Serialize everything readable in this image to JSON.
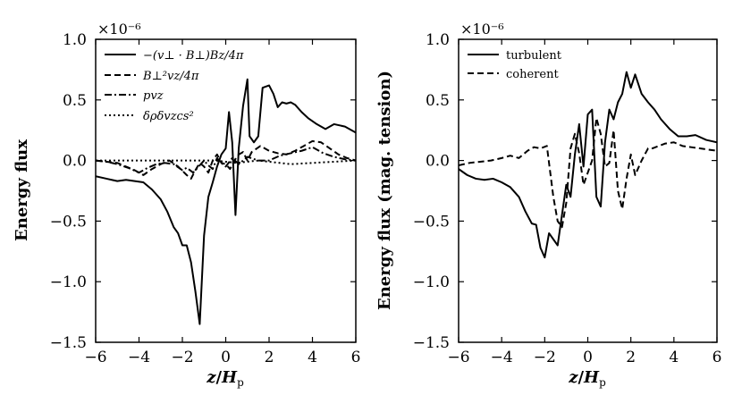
{
  "chart_data": [
    {
      "type": "line",
      "xlabel": "z/H_p",
      "xlabel_parts": [
        "z",
        "/",
        "H",
        "p"
      ],
      "ylabel": "Energy flux",
      "offset_label": "×10⁻⁶",
      "xlim": [
        -6,
        6
      ],
      "ylim": [
        -1.5,
        1.0
      ],
      "xticks": [
        -6,
        -4,
        -2,
        0,
        2,
        4,
        6
      ],
      "xtick_labels": [
        "−6",
        "−4",
        "−2",
        "0",
        "2",
        "4",
        "6"
      ],
      "yticks": [
        -1.5,
        -1.0,
        -0.5,
        0.0,
        0.5,
        1.0
      ],
      "ytick_labels": [
        "−1.5",
        "−1.0",
        "−0.5",
        "0.0",
        "0.5",
        "1.0"
      ],
      "legend_position": "top-left",
      "series": [
        {
          "name": "−(v⊥ · B⊥)Bz/4π",
          "style": "solid",
          "x": [
            -6,
            -5.5,
            -5,
            -4.6,
            -4.2,
            -3.8,
            -3.4,
            -3.0,
            -2.7,
            -2.4,
            -2.2,
            -2.0,
            -1.8,
            -1.6,
            -1.4,
            -1.2,
            -1.0,
            -0.8,
            -0.6,
            -0.4,
            -0.2,
            0.0,
            0.15,
            0.3,
            0.45,
            0.6,
            0.8,
            1.0,
            1.1,
            1.3,
            1.5,
            1.7,
            2.0,
            2.2,
            2.4,
            2.6,
            2.8,
            3.0,
            3.2,
            3.5,
            3.8,
            4.2,
            4.6,
            5.0,
            5.5,
            6.0
          ],
          "y": [
            -0.13,
            -0.15,
            -0.17,
            -0.16,
            -0.17,
            -0.18,
            -0.24,
            -0.32,
            -0.42,
            -0.55,
            -0.6,
            -0.7,
            -0.7,
            -0.84,
            -1.08,
            -1.35,
            -0.62,
            -0.3,
            -0.18,
            -0.05,
            0.05,
            0.1,
            0.4,
            0.15,
            -0.45,
            0.1,
            0.45,
            0.67,
            0.2,
            0.15,
            0.2,
            0.6,
            0.62,
            0.55,
            0.44,
            0.48,
            0.47,
            0.48,
            0.46,
            0.4,
            0.35,
            0.3,
            0.26,
            0.3,
            0.28,
            0.23
          ]
        },
        {
          "name": "B⊥²vz/4π",
          "style": "dashed",
          "x": [
            -6,
            -5.5,
            -5,
            -4.6,
            -4.2,
            -3.8,
            -3.4,
            -3.0,
            -2.6,
            -2.2,
            -1.8,
            -1.6,
            -1.4,
            -1.2,
            -1.0,
            -0.8,
            -0.6,
            -0.4,
            -0.2,
            0.0,
            0.2,
            0.4,
            0.6,
            0.8,
            1.0,
            1.2,
            1.6,
            2.0,
            2.4,
            2.8,
            3.2,
            3.6,
            4.0,
            4.4,
            4.8,
            5.2,
            5.6,
            6.0
          ],
          "y": [
            0.0,
            -0.01,
            -0.02,
            -0.05,
            -0.08,
            -0.12,
            -0.07,
            -0.03,
            0.0,
            -0.05,
            -0.12,
            -0.15,
            -0.08,
            -0.02,
            -0.05,
            -0.1,
            0.0,
            0.05,
            -0.02,
            -0.03,
            -0.07,
            0.0,
            0.05,
            0.07,
            0.0,
            0.07,
            0.12,
            0.08,
            0.06,
            0.05,
            0.08,
            0.12,
            0.16,
            0.15,
            0.1,
            0.05,
            0.02,
            0.0
          ]
        },
        {
          "name": "pvz",
          "style": "dashdot",
          "x": [
            -6,
            -5.5,
            -5,
            -4.5,
            -4.0,
            -3.6,
            -3.2,
            -2.8,
            -2.4,
            -2.0,
            -1.8,
            -1.5,
            -1.2,
            -1.0,
            -0.8,
            -0.6,
            -0.4,
            -0.2,
            0.0,
            0.3,
            0.6,
            1.0,
            1.5,
            2.0,
            2.5,
            3.0,
            3.5,
            4.0,
            4.5,
            5.0,
            5.5,
            6.0
          ],
          "y": [
            0.0,
            -0.01,
            -0.03,
            -0.06,
            -0.1,
            -0.06,
            -0.03,
            -0.02,
            -0.03,
            -0.08,
            -0.06,
            -0.1,
            -0.04,
            0.0,
            -0.04,
            -0.07,
            0.02,
            -0.02,
            -0.05,
            0.02,
            -0.03,
            0.03,
            0.0,
            0.0,
            0.04,
            0.06,
            0.08,
            0.11,
            0.06,
            0.03,
            0.01,
            0.0
          ]
        },
        {
          "name": "δρδvzcs²",
          "style": "dotted",
          "x": [
            -6,
            -5,
            -4,
            -3,
            -2,
            -1.5,
            -1,
            -0.5,
            0.0,
            0.5,
            1,
            1.5,
            2,
            3,
            4,
            5,
            6
          ],
          "y": [
            0.0,
            0.0,
            0.0,
            0.0,
            0.0,
            0.0,
            0.0,
            0.0,
            -0.01,
            -0.02,
            -0.01,
            0.0,
            -0.01,
            -0.03,
            -0.02,
            -0.01,
            0.0
          ]
        }
      ]
    },
    {
      "type": "line",
      "xlabel": "z/H_p",
      "xlabel_parts": [
        "z",
        "/",
        "H",
        "p"
      ],
      "ylabel": "Energy flux (mag. tension)",
      "offset_label": "×10⁻⁶",
      "xlim": [
        -6,
        6
      ],
      "ylim": [
        -1.5,
        1.0
      ],
      "xticks": [
        -6,
        -4,
        -2,
        0,
        2,
        4,
        6
      ],
      "xtick_labels": [
        "−6",
        "−4",
        "−2",
        "0",
        "2",
        "4",
        "6"
      ],
      "yticks": [
        -1.5,
        -1.0,
        -0.5,
        0.0,
        0.5,
        1.0
      ],
      "ytick_labels": [
        "−1.5",
        "−1.0",
        "−0.5",
        "0.0",
        "0.5",
        "1.0"
      ],
      "legend_position": "top-left",
      "series": [
        {
          "name": "turbulent",
          "style": "solid",
          "x": [
            -6,
            -5.6,
            -5.2,
            -4.8,
            -4.4,
            -4.0,
            -3.6,
            -3.2,
            -2.9,
            -2.6,
            -2.4,
            -2.2,
            -2.0,
            -1.8,
            -1.6,
            -1.4,
            -1.2,
            -1.0,
            -0.8,
            -0.6,
            -0.4,
            -0.2,
            0.0,
            0.2,
            0.4,
            0.6,
            0.8,
            1.0,
            1.2,
            1.4,
            1.6,
            1.8,
            2.0,
            2.2,
            2.5,
            2.8,
            3.1,
            3.4,
            3.8,
            4.2,
            4.6,
            5.0,
            5.5,
            6.0
          ],
          "y": [
            -0.07,
            -0.12,
            -0.15,
            -0.16,
            -0.15,
            -0.18,
            -0.22,
            -0.3,
            -0.42,
            -0.52,
            -0.53,
            -0.72,
            -0.8,
            -0.6,
            -0.65,
            -0.7,
            -0.45,
            -0.2,
            -0.3,
            0.05,
            0.3,
            -0.05,
            0.38,
            0.42,
            -0.3,
            -0.38,
            0.15,
            0.42,
            0.34,
            0.48,
            0.55,
            0.73,
            0.6,
            0.71,
            0.55,
            0.48,
            0.42,
            0.34,
            0.26,
            0.2,
            0.2,
            0.21,
            0.17,
            0.15
          ]
        },
        {
          "name": "coherent",
          "style": "dashed",
          "x": [
            -6,
            -5.5,
            -5,
            -4.5,
            -4.0,
            -3.6,
            -3.2,
            -2.8,
            -2.5,
            -2.2,
            -1.9,
            -1.6,
            -1.4,
            -1.2,
            -1.0,
            -0.8,
            -0.6,
            -0.4,
            -0.2,
            0.0,
            0.2,
            0.4,
            0.6,
            0.8,
            1.0,
            1.2,
            1.4,
            1.6,
            1.8,
            2.0,
            2.2,
            2.5,
            2.8,
            3.0,
            3.3,
            3.6,
            4.0,
            4.4,
            4.8,
            5.2,
            5.6,
            6.0
          ],
          "y": [
            -0.04,
            -0.02,
            -0.01,
            0.0,
            0.02,
            0.04,
            0.02,
            0.08,
            0.11,
            0.1,
            0.12,
            -0.3,
            -0.5,
            -0.55,
            -0.35,
            0.1,
            0.22,
            0.06,
            -0.2,
            -0.1,
            0.0,
            0.35,
            0.22,
            -0.05,
            -0.02,
            0.25,
            -0.25,
            -0.4,
            -0.15,
            0.05,
            -0.12,
            0.0,
            0.1,
            0.1,
            0.12,
            0.14,
            0.15,
            0.12,
            0.11,
            0.1,
            0.09,
            0.08
          ]
        }
      ]
    }
  ]
}
